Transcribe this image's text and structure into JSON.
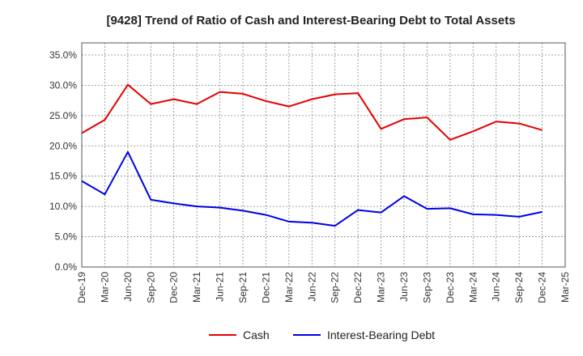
{
  "chart_data": {
    "type": "line",
    "title": "[9428]  Trend of Ratio of Cash and Interest-Bearing Debt to Total Assets",
    "xlabel": "",
    "ylabel": "",
    "categories": [
      "Dec-19",
      "Mar-20",
      "Jun-20",
      "Sep-20",
      "Dec-20",
      "Mar-21",
      "Jun-21",
      "Sep-21",
      "Dec-21",
      "Mar-22",
      "Jun-22",
      "Sep-22",
      "Dec-22",
      "Mar-23",
      "Jun-23",
      "Sep-23",
      "Dec-23",
      "Mar-24",
      "Jun-24",
      "Sep-24",
      "Dec-24",
      "Mar-25"
    ],
    "y_ticks": [
      "0.0%",
      "5.0%",
      "10.0%",
      "15.0%",
      "20.0%",
      "25.0%",
      "30.0%",
      "35.0%"
    ],
    "ylim": [
      0,
      37
    ],
    "grid": true,
    "legend_position": "bottom",
    "series": [
      {
        "name": "Cash",
        "color": "#e60000",
        "values": [
          22.1,
          24.3,
          30.1,
          26.9,
          27.7,
          26.9,
          28.9,
          28.6,
          27.4,
          26.5,
          27.7,
          28.5,
          28.7,
          22.8,
          24.4,
          24.7,
          21.0,
          22.4,
          24.0,
          23.7,
          22.6,
          null
        ]
      },
      {
        "name": "Interest-Bearing Debt",
        "color": "#0000e6",
        "values": [
          14.2,
          12.0,
          19.0,
          11.1,
          10.5,
          10.0,
          9.8,
          9.3,
          8.6,
          7.5,
          7.3,
          6.8,
          9.4,
          9.0,
          11.7,
          9.6,
          9.7,
          8.7,
          8.6,
          8.3,
          9.1,
          null
        ]
      }
    ]
  }
}
